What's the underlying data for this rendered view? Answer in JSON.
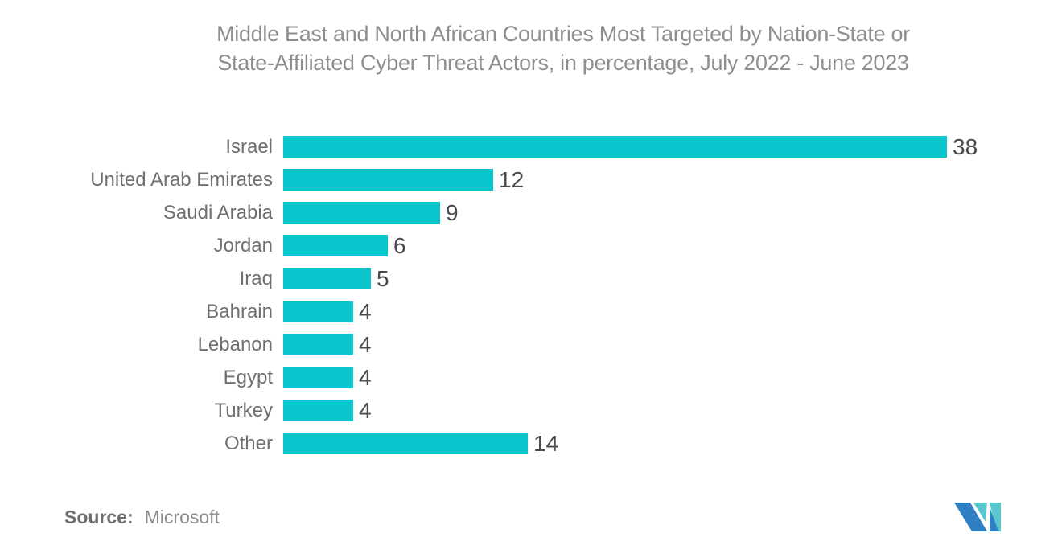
{
  "page": {
    "title_lines": [
      "Middle East and North African Countries Most Targeted by Nation-State or",
      "State-Affiliated Cyber Threat Actors, in percentage, July 2022 - June 2023"
    ],
    "source_label": "Source:",
    "source_value": "Microsoft"
  },
  "chart_data": {
    "type": "bar",
    "orientation": "horizontal",
    "title": "Middle East and North African Countries Most Targeted by Nation-State or State-Affiliated Cyber Threat Actors, in percentage, July 2022 - June 2023",
    "categories": [
      "Israel",
      "United Arab Emirates",
      "Saudi Arabia",
      "Jordan",
      "Iraq",
      "Bahrain",
      "Lebanon",
      "Egypt",
      "Turkey",
      "Other"
    ],
    "values": [
      38,
      12,
      9,
      6,
      5,
      4,
      4,
      4,
      4,
      14
    ],
    "unit": "percentage",
    "xlim": [
      0,
      38
    ],
    "grid": false,
    "legend_position": "none",
    "value_labels": true,
    "source": "Microsoft"
  },
  "colors": {
    "bar": "#0AC5CB",
    "title_text": "#8E8E8E",
    "category_text": "#6F6F6F",
    "value_text": "#4A4A4A",
    "logo_blue": "#2F80C3",
    "logo_teal": "#58C7CF"
  }
}
